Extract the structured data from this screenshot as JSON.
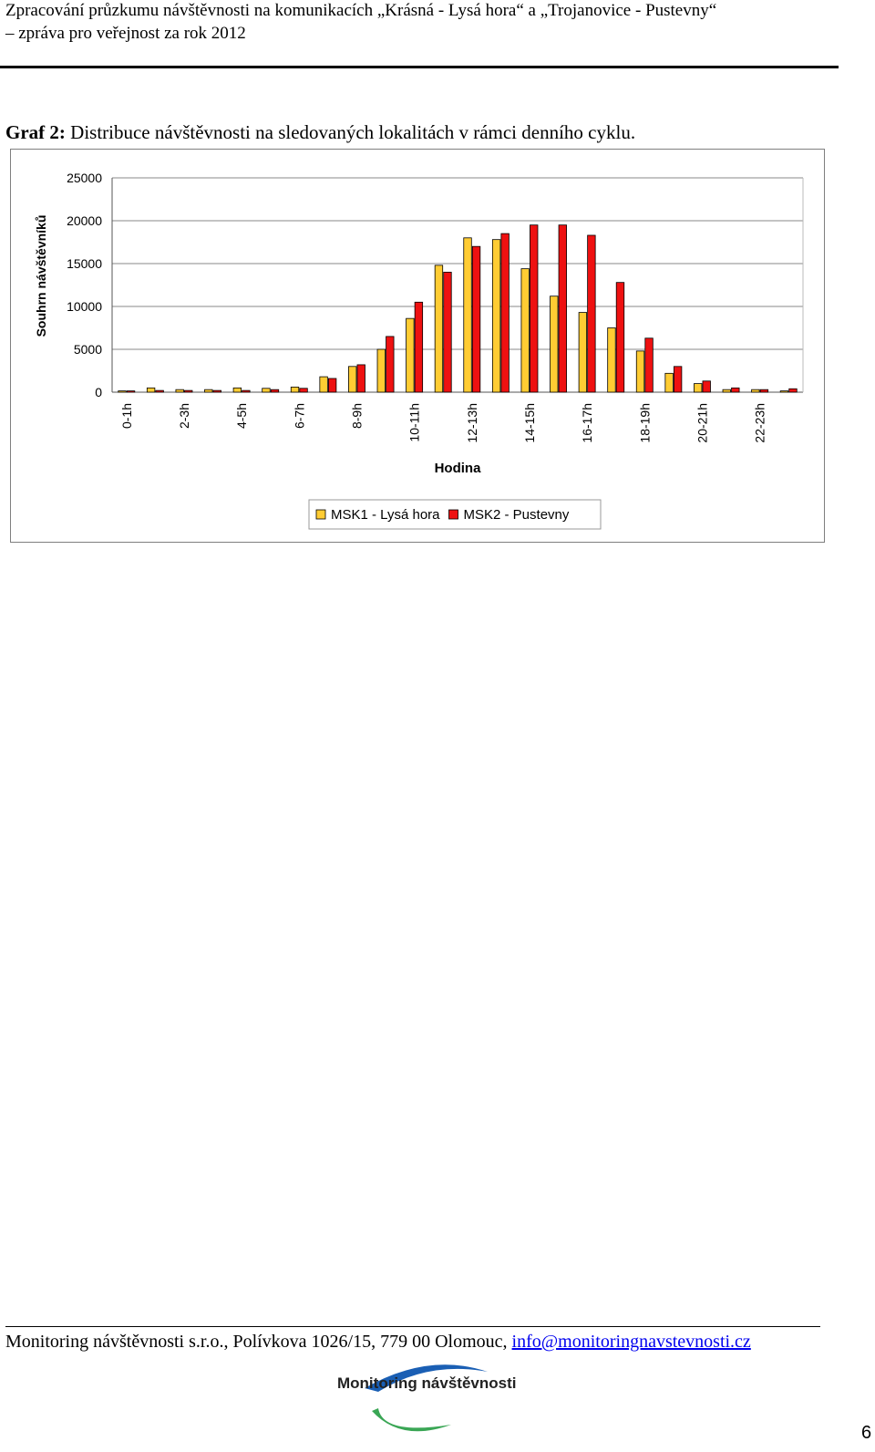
{
  "header": {
    "line1": "Zpracování průzkumu návštěvnosti na komunikacích „Krásná - Lysá hora“ a „Trojanovice - Pustevny“",
    "line2": "– zpráva pro veřejnost za rok 2012"
  },
  "caption": {
    "label": "Graf 2:",
    "text": " Distribuce návštěvnosti na sledovaných lokalitách v rámci denního cyklu."
  },
  "chart_data": {
    "type": "bar",
    "xlabel": "Hodina",
    "ylabel": "Souhrn návštěvníků",
    "ylim": [
      0,
      25000
    ],
    "yticks": [
      0,
      5000,
      10000,
      15000,
      20000,
      25000
    ],
    "categories": [
      "0-1h",
      "1-2h",
      "2-3h",
      "3-4h",
      "4-5h",
      "5-6h",
      "6-7h",
      "7-8h",
      "8-9h",
      "9-10h",
      "10-11h",
      "11-12h",
      "12-13h",
      "13-14h",
      "14-15h",
      "15-16h",
      "16-17h",
      "17-18h",
      "18-19h",
      "19-20h",
      "20-21h",
      "21-22h",
      "22-23h",
      "23-24h"
    ],
    "category_labels_shown": [
      "0-1h",
      "2-3h",
      "4-5h",
      "6-7h",
      "8-9h",
      "10-11h",
      "12-13h",
      "14-15h",
      "16-17h",
      "18-19h",
      "20-21h",
      "22-23h"
    ],
    "series": [
      {
        "name": "MSK1 - Lysá hora",
        "color": "#FFCC33",
        "values": [
          150,
          500,
          300,
          300,
          500,
          450,
          600,
          1800,
          3000,
          5000,
          8600,
          14800,
          18000,
          17800,
          14400,
          11200,
          9300,
          7500,
          4800,
          2200,
          1000,
          300,
          300,
          150
        ]
      },
      {
        "name": "MSK2 - Pustevny",
        "color": "#EE1111",
        "values": [
          150,
          200,
          200,
          200,
          200,
          300,
          450,
          1600,
          3200,
          6500,
          10500,
          14000,
          17000,
          18500,
          19500,
          19500,
          18300,
          12800,
          6300,
          3000,
          1300,
          500,
          300,
          400
        ]
      }
    ],
    "grid": true,
    "legend_position": "bottom"
  },
  "footer": {
    "text": "Monitoring návštěvnosti s.r.o., Polívkova 1026/15, 779 00 Olomouc, ",
    "email": "info@monitoringnavstevnosti.cz"
  },
  "logo": {
    "text": "Monitoring návštěvnosti",
    "colors": [
      "#1a5fb4",
      "#3aa655"
    ]
  },
  "page_number": "6"
}
